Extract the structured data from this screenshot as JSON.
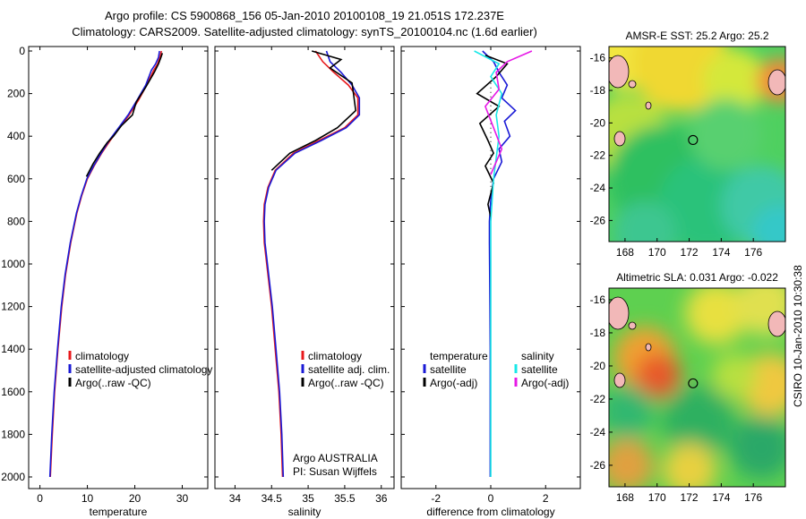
{
  "titles": {
    "line1": "Argo profile: CS 5900868_156 05-Jan-2010 20100108_19 21.051S 172.237E",
    "line2": "Climatology: CARS2009. Satellite-adjusted climatology: synTS_20100104.nc (1.6d earlier)"
  },
  "stamp": "CSIRO 10-Jan-2010 10:30:38",
  "colors": {
    "red": "#e8191c",
    "blue": "#1a1ad6",
    "black": "#000000",
    "cyan": "#19e8e8",
    "magenta": "#e619e6"
  },
  "chart_data": [
    {
      "type": "line",
      "name": "temperature",
      "xlabel": "temperature",
      "xlim": [
        -2,
        35
      ],
      "ylim": [
        0,
        2050
      ],
      "xticks": [
        0,
        10,
        20,
        30
      ],
      "yticks": [
        0,
        200,
        400,
        600,
        800,
        1000,
        1200,
        1400,
        1600,
        1800,
        2000
      ],
      "series": [
        {
          "name": "climatology",
          "color": "red",
          "x": [
            25.6,
            25.3,
            24.8,
            24,
            22.5,
            20.8,
            18.8,
            16.8,
            14.8,
            13,
            11.4,
            10,
            8.8,
            7.8,
            6.5,
            5.4,
            4.6,
            3.8,
            3.1,
            2.6,
            2.2
          ],
          "y": [
            0,
            30,
            60,
            90,
            160,
            230,
            300,
            360,
            420,
            480,
            540,
            600,
            680,
            760,
            900,
            1050,
            1200,
            1400,
            1600,
            1800,
            2000
          ]
        },
        {
          "name": "satellite-adjusted climatology",
          "color": "blue",
          "x": [
            25.2,
            25.0,
            24.4,
            23.5,
            22.3,
            20.5,
            18.6,
            16.6,
            14.6,
            12.9,
            11.3,
            9.9,
            8.7,
            7.7,
            6.4,
            5.3,
            4.5,
            3.7,
            3.0,
            2.5,
            2.1
          ],
          "y": [
            0,
            30,
            60,
            90,
            160,
            230,
            300,
            360,
            420,
            480,
            540,
            600,
            680,
            760,
            900,
            1050,
            1200,
            1400,
            1600,
            1800,
            2000
          ]
        },
        {
          "name": "Argo(..raw -QC)",
          "color": "black",
          "x": [
            25.8,
            25.5,
            25,
            24.1,
            22.3,
            20.3,
            19.5,
            17.2,
            15.5,
            14.2,
            12.6,
            11.2,
            9.8
          ],
          "y": [
            10,
            30,
            60,
            100,
            170,
            240,
            300,
            350,
            400,
            430,
            480,
            530,
            590
          ]
        }
      ],
      "legend": [
        "climatology",
        "satellite-adjusted climatology",
        "Argo(..raw -QC)"
      ]
    },
    {
      "type": "line",
      "name": "salinity",
      "xlabel": "salinity",
      "xlim": [
        33.75,
        36.15
      ],
      "ylim": [
        0,
        2050
      ],
      "xticks": [
        34,
        34.5,
        35,
        35.5,
        36
      ],
      "yticks": [
        0,
        200,
        400,
        600,
        800,
        1000,
        1200,
        1400,
        1600,
        1800,
        2000
      ],
      "series": [
        {
          "name": "climatology",
          "color": "red",
          "x": [
            35.1,
            35.2,
            35.35,
            35.55,
            35.68,
            35.68,
            35.5,
            35.15,
            34.8,
            34.55,
            34.45,
            34.4,
            34.39,
            34.4,
            34.45,
            34.5,
            34.55,
            34.6,
            34.63,
            34.65
          ],
          "y": [
            0,
            50,
            100,
            160,
            220,
            300,
            360,
            420,
            480,
            560,
            640,
            720,
            800,
            900,
            1050,
            1200,
            1400,
            1600,
            1800,
            2000
          ]
        },
        {
          "name": "satellite adj. clim.",
          "color": "blue",
          "x": [
            35.25,
            35.3,
            35.45,
            35.6,
            35.7,
            35.7,
            35.52,
            35.18,
            34.82,
            34.56,
            34.46,
            34.41,
            34.4,
            34.41,
            34.46,
            34.51,
            34.56,
            34.61,
            34.64,
            34.66
          ],
          "y": [
            0,
            50,
            100,
            160,
            220,
            300,
            360,
            420,
            480,
            560,
            640,
            720,
            800,
            900,
            1050,
            1200,
            1400,
            1600,
            1800,
            2000
          ]
        },
        {
          "name": "Argo(..raw -QC)",
          "color": "black",
          "x": [
            35.05,
            35.45,
            35.3,
            35.6,
            35.62,
            35.65,
            35.4,
            35.1,
            34.75,
            34.5
          ],
          "y": [
            0,
            40,
            80,
            150,
            200,
            280,
            360,
            420,
            480,
            560
          ]
        }
      ],
      "legend": [
        "climatology",
        "satellite adj. clim.",
        "Argo(..raw -QC)"
      ],
      "annotation": [
        "Argo AUSTRALIA",
        "PI: Susan Wijffels"
      ]
    },
    {
      "type": "line",
      "name": "difference",
      "xlabel": "difference from climatology",
      "xlim": [
        -3.2,
        3.2
      ],
      "ylim": [
        0,
        2050
      ],
      "xticks": [
        -2,
        0,
        2
      ],
      "yticks": [
        0,
        200,
        400,
        600,
        800,
        1000,
        1200,
        1400,
        1600,
        1800,
        2000
      ],
      "series": [
        {
          "name": "temperature satellite",
          "color": "blue",
          "x": [
            -0.3,
            0.1,
            0.3,
            0.6,
            0.4,
            0.9,
            0.5,
            0.7,
            0.3,
            0.4,
            0.1,
            0.0,
            -0.05,
            -0.05,
            -0.04,
            -0.03,
            -0.02,
            -0.02,
            -0.02
          ],
          "y": [
            0,
            50,
            100,
            160,
            220,
            280,
            330,
            400,
            460,
            520,
            600,
            700,
            800,
            900,
            1050,
            1200,
            1400,
            1600,
            2000
          ]
        },
        {
          "name": "temperature Argo(-adj)",
          "color": "black",
          "x": [
            -0.2,
            0.6,
            0.2,
            -0.5,
            0.3,
            -0.4,
            -0.1,
            0.1,
            -0.2,
            0.1,
            -0.1,
            0.0
          ],
          "y": [
            20,
            60,
            120,
            200,
            260,
            340,
            420,
            480,
            540,
            620,
            720,
            780
          ]
        },
        {
          "name": "salinity satellite",
          "color": "cyan",
          "x": [
            -0.6,
            0.3,
            0.0,
            0.4,
            0.2,
            0.3,
            0.1,
            0.0,
            0.0,
            0.0,
            0.0,
            0.0,
            0.0
          ],
          "y": [
            0,
            60,
            120,
            200,
            300,
            400,
            600,
            800,
            1000,
            1200,
            1400,
            1600,
            2000
          ]
        },
        {
          "name": "salinity Argo(-adj)",
          "color": "magenta",
          "x": [
            1.5,
            0.6,
            0.2,
            0.3,
            -0.2,
            0.1,
            0.4,
            0.0
          ],
          "y": [
            0,
            50,
            100,
            180,
            260,
            360,
            460,
            580
          ]
        }
      ],
      "legend_titles": [
        "temperature",
        "salinity"
      ],
      "legend": [
        "satellite",
        "Argo(-adj)",
        "satellite",
        "Argo(-adj)"
      ]
    },
    {
      "type": "heatmap",
      "name": "sst_map",
      "title": "AMSR-E SST: 25.2  Argo: 25.2",
      "xticks": [
        168,
        170,
        172,
        174,
        176
      ],
      "yticks": [
        -16,
        -18,
        -20,
        -22,
        -24,
        -26
      ],
      "xlim": [
        167,
        178
      ],
      "ylim": [
        -27.3,
        -15.3
      ],
      "marker": [
        172.24,
        -21.05
      ]
    },
    {
      "type": "heatmap",
      "name": "sla_map",
      "title": "Altimetric SLA: 0.031  Argo: -0.022",
      "xticks": [
        168,
        170,
        172,
        174,
        176
      ],
      "yticks": [
        -16,
        -18,
        -20,
        -22,
        -24,
        -26
      ],
      "xlim": [
        167,
        178
      ],
      "ylim": [
        -27.3,
        -15.3
      ],
      "marker": [
        172.24,
        -21.05
      ]
    }
  ]
}
